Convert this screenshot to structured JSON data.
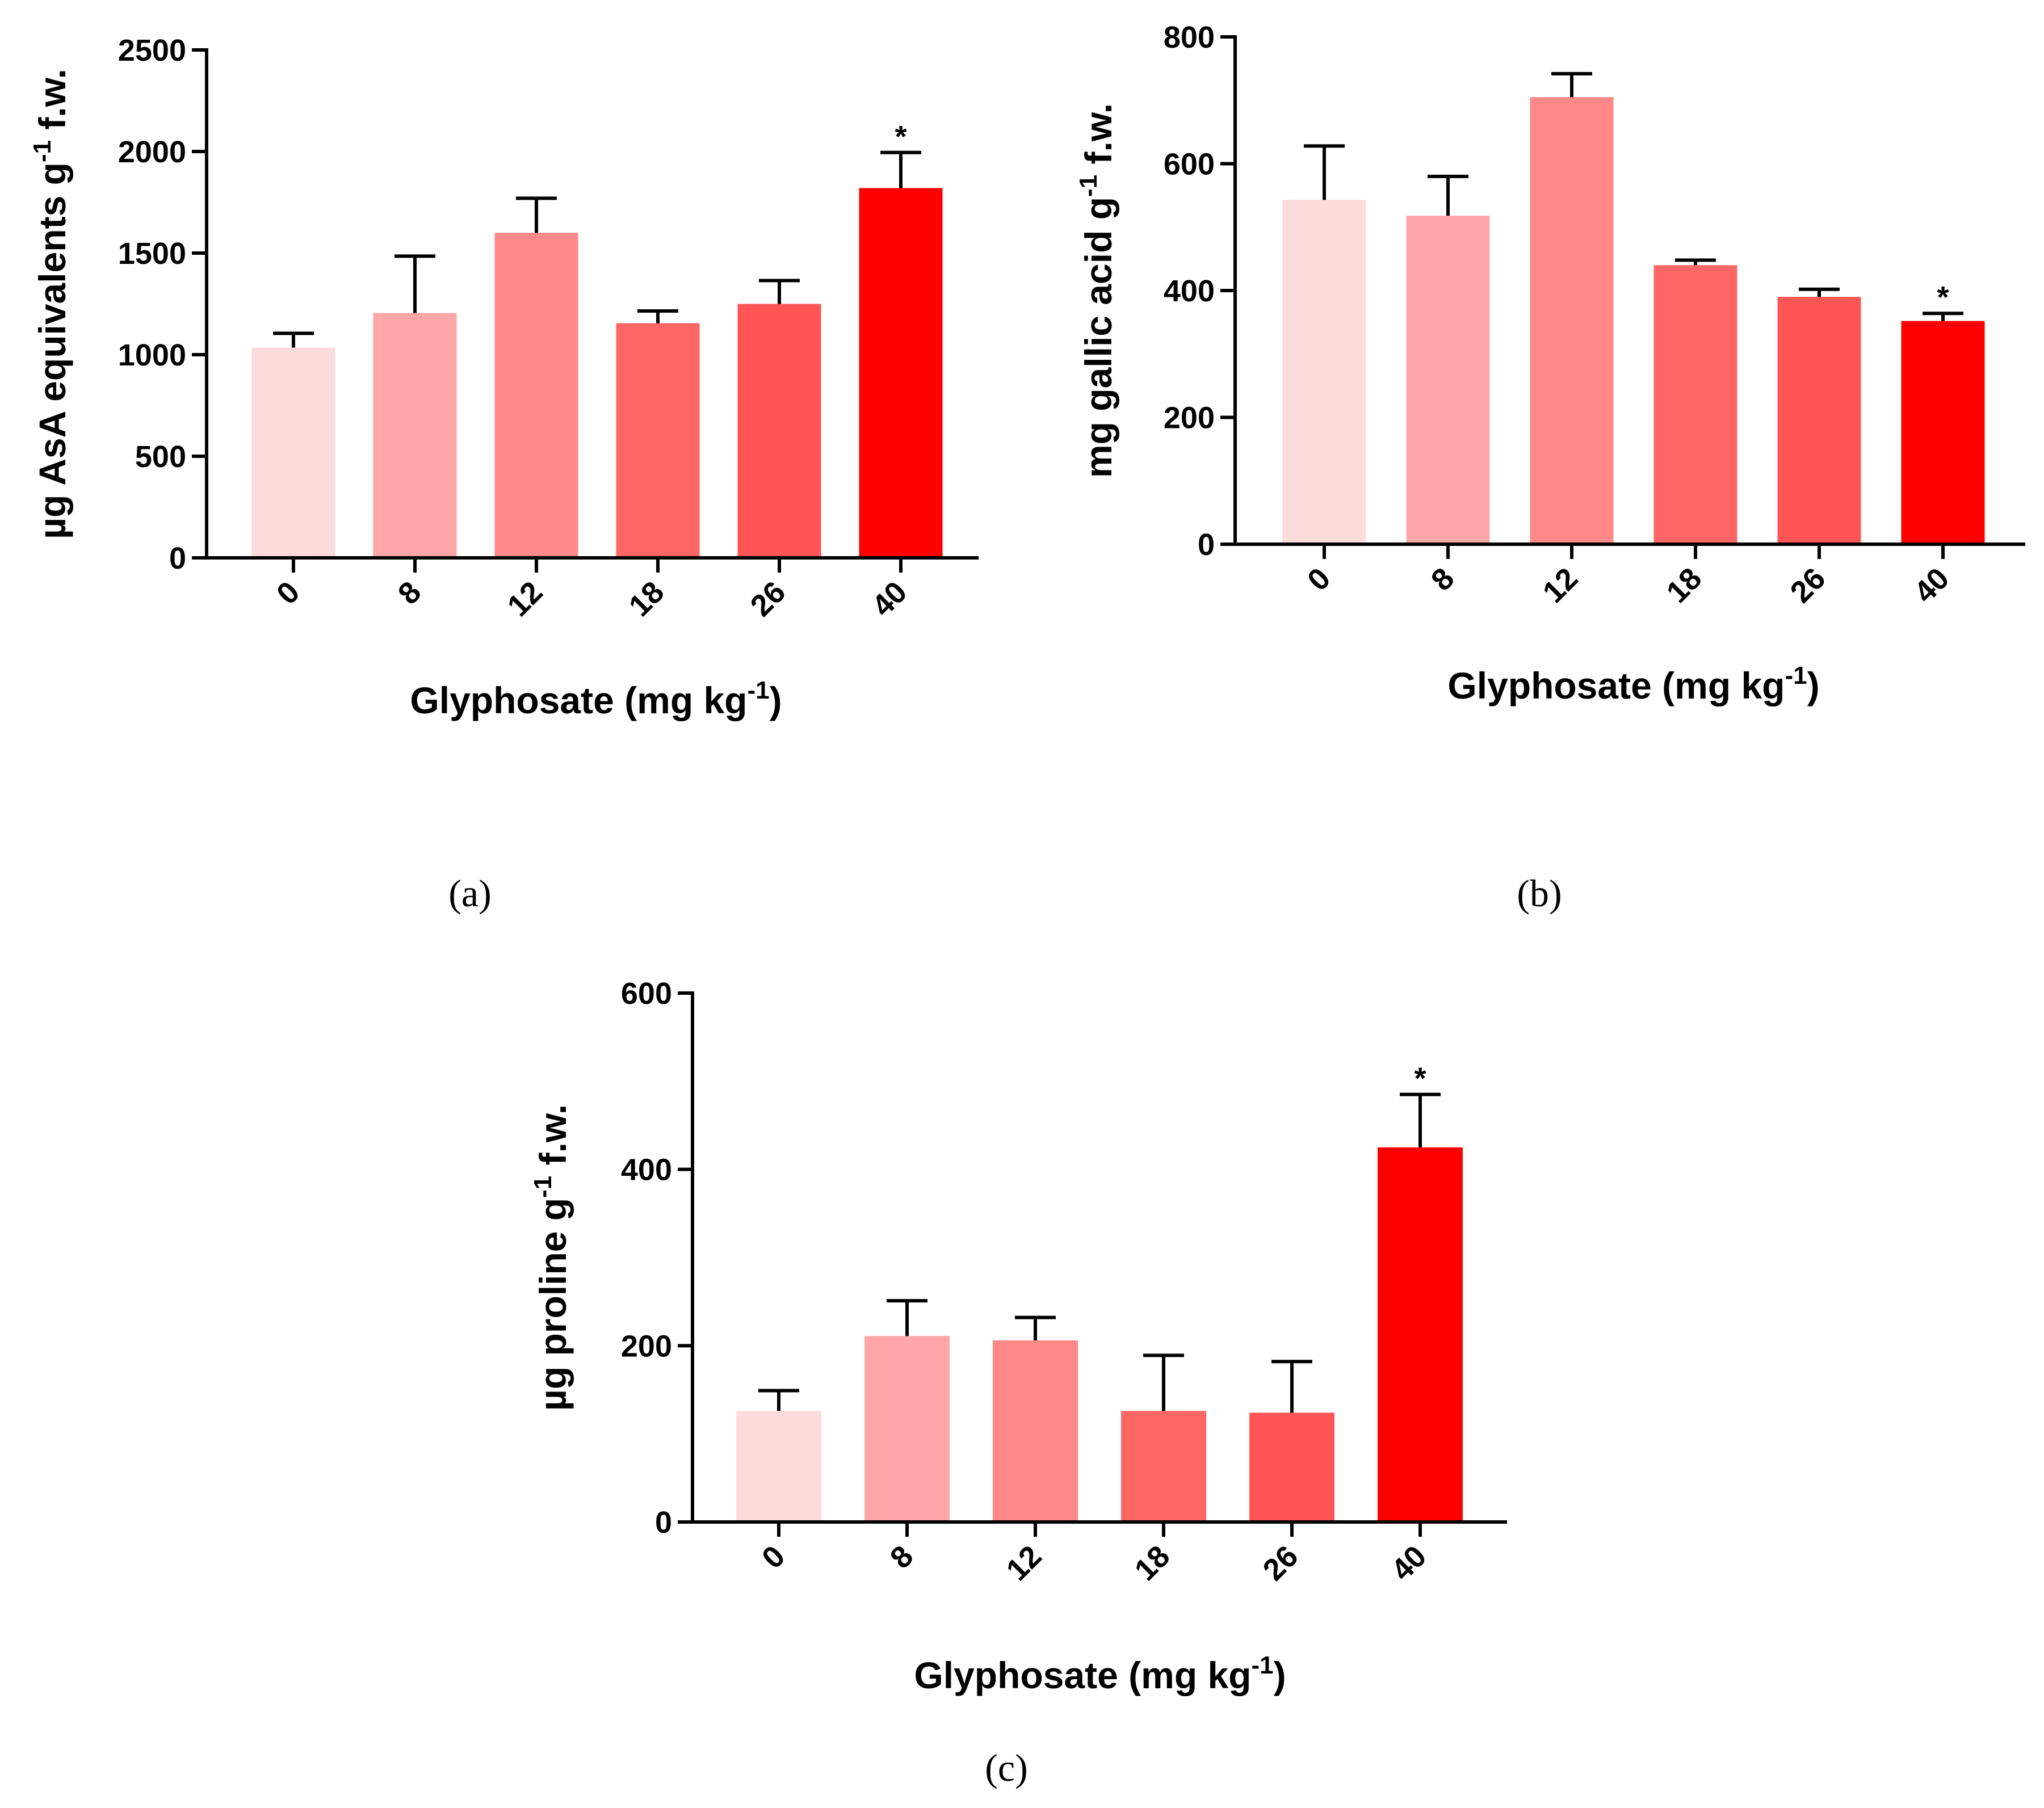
{
  "colors": [
    "#FFDCDC",
    "#FFA6A8",
    "#FF8888",
    "#FF6666",
    "#FF5555",
    "#FF0000"
  ],
  "chart_data": [
    {
      "panel": "(a)",
      "type": "bar",
      "categories": [
        "0",
        "8",
        "12",
        "18",
        "26",
        "40"
      ],
      "values": [
        1035,
        1205,
        1600,
        1155,
        1250,
        1820
      ],
      "errors": [
        70,
        280,
        170,
        60,
        115,
        175
      ],
      "significant": [
        false,
        false,
        false,
        false,
        false,
        true
      ],
      "sig_marker": "*",
      "ylabel": {
        "pre": "µg AsA equivalents g",
        "sup": "-1",
        "post": " f.w."
      },
      "xlabel": {
        "pre": "Glyphosate (mg kg",
        "sup": "-1",
        "post": ")"
      },
      "ylim": [
        0,
        2500
      ],
      "yticks": [
        0,
        500,
        1000,
        1500,
        2000,
        2500
      ]
    },
    {
      "panel": "(b)",
      "type": "bar",
      "categories": [
        "0",
        "8",
        "12",
        "18",
        "26",
        "40"
      ],
      "values": [
        543,
        518,
        705,
        440,
        390,
        352
      ],
      "errors": [
        85,
        62,
        37,
        8,
        12,
        12
      ],
      "significant": [
        false,
        false,
        false,
        false,
        false,
        true
      ],
      "sig_marker": "*",
      "ylabel": {
        "pre": "mg gallic acid g",
        "sup": "-1",
        "post": " f.w."
      },
      "xlabel": {
        "pre": "Glyphosate (mg kg",
        "sup": "-1",
        "post": ")"
      },
      "ylim": [
        0,
        800
      ],
      "yticks": [
        0,
        200,
        400,
        600,
        800
      ]
    },
    {
      "panel": "(c)",
      "type": "bar",
      "categories": [
        "0",
        "8",
        "12",
        "18",
        "26",
        "40"
      ],
      "values": [
        126,
        211,
        206,
        126,
        124,
        425
      ],
      "errors": [
        23,
        40,
        26,
        63,
        58,
        60
      ],
      "significant": [
        false,
        false,
        false,
        false,
        false,
        true
      ],
      "sig_marker": "*",
      "ylabel": {
        "pre": "µg proline g",
        "sup": "-1",
        "post": " f.w."
      },
      "xlabel": {
        "pre": "Glyphosate (mg kg",
        "sup": "-1",
        "post": ")"
      },
      "ylim": [
        0,
        600
      ],
      "yticks": [
        0,
        200,
        400,
        600
      ]
    }
  ]
}
